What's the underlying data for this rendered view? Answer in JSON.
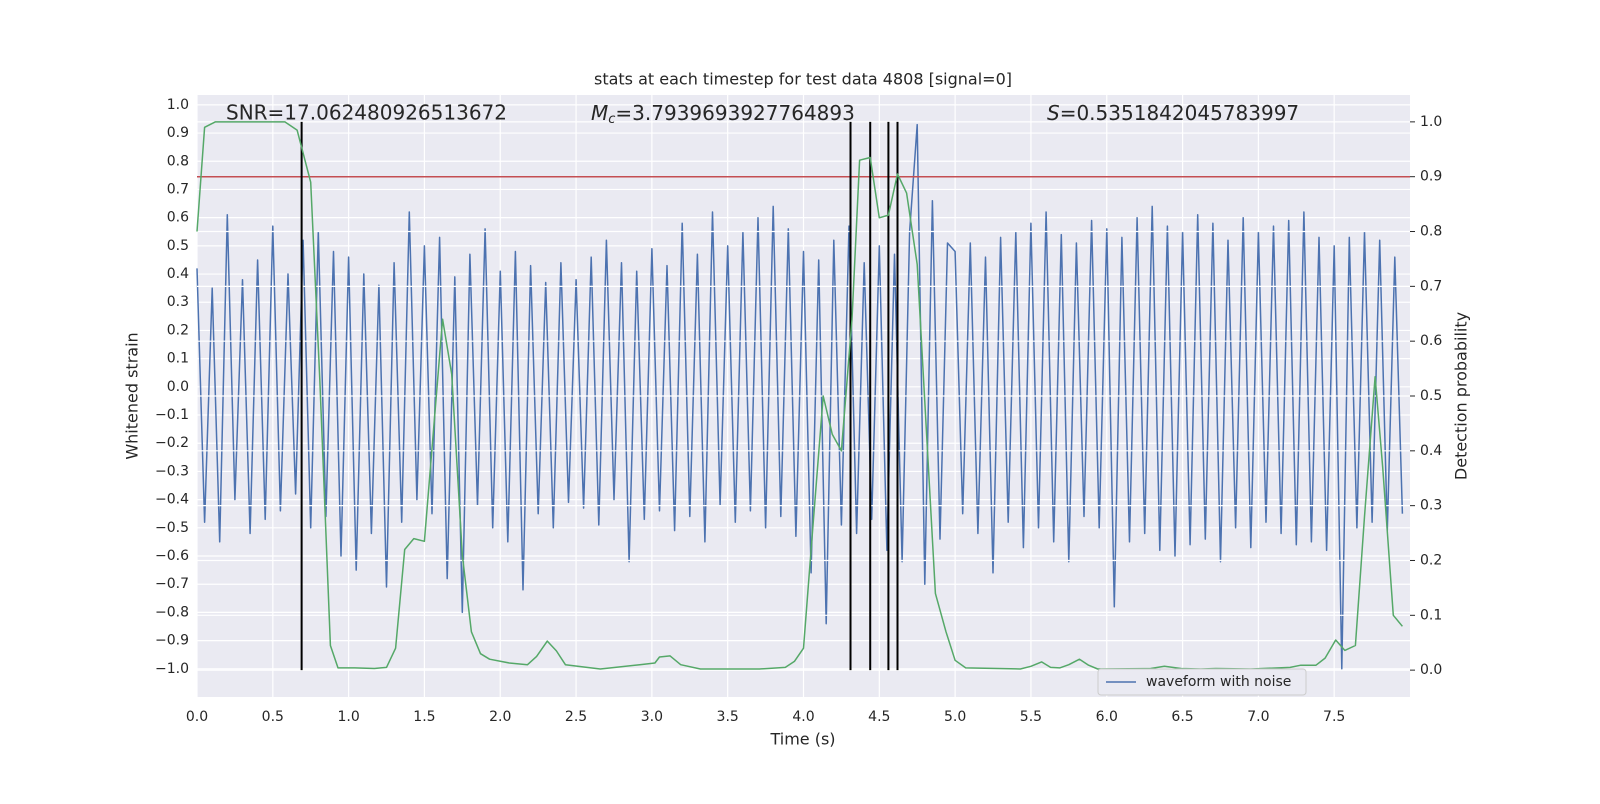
{
  "chart_data": {
    "type": "line",
    "title": "stats at each timestep for test data 4808 [signal=0]",
    "xlabel": "Time (s)",
    "ylabel": "Whitened strain",
    "y2label": "Detection probability",
    "annotations": [
      {
        "text": "SNR=17.062480926513672"
      },
      {
        "symbol": "M",
        "subscript": "c",
        "text": "=3.7939693927764893"
      },
      {
        "symbol": "S",
        "text": "=0.5351842045783997"
      }
    ],
    "xlim": [
      0,
      8.0
    ],
    "ylim": [
      -1.1,
      1.035
    ],
    "y2lim": [
      -0.049,
      1.049
    ],
    "xticks": [
      {
        "value": 0,
        "label": "0.0"
      },
      {
        "value": 0.5,
        "label": "0.5"
      },
      {
        "value": 1,
        "label": "1.0"
      },
      {
        "value": 1.5,
        "label": "1.5"
      },
      {
        "value": 2,
        "label": "2.0"
      },
      {
        "value": 2.5,
        "label": "2.5"
      },
      {
        "value": 3,
        "label": "3.0"
      },
      {
        "value": 3.5,
        "label": "3.5"
      },
      {
        "value": 4,
        "label": "4.0"
      },
      {
        "value": 4.5,
        "label": "4.5"
      },
      {
        "value": 5,
        "label": "5.0"
      },
      {
        "value": 5.5,
        "label": "5.5"
      },
      {
        "value": 6,
        "label": "6.0"
      },
      {
        "value": 6.5,
        "label": "6.5"
      },
      {
        "value": 7,
        "label": "7.0"
      },
      {
        "value": 7.5,
        "label": "7.5"
      }
    ],
    "yticks": [
      {
        "value": -1,
        "label": "−1.0"
      },
      {
        "value": -0.9,
        "label": "−0.9"
      },
      {
        "value": -0.8,
        "label": "−0.8"
      },
      {
        "value": -0.7,
        "label": "−0.7"
      },
      {
        "value": -0.6,
        "label": "−0.6"
      },
      {
        "value": -0.5,
        "label": "−0.5"
      },
      {
        "value": -0.4,
        "label": "−0.4"
      },
      {
        "value": -0.3,
        "label": "−0.3"
      },
      {
        "value": -0.2,
        "label": "−0.2"
      },
      {
        "value": -0.1,
        "label": "−0.1"
      },
      {
        "value": 0,
        "label": "0.0"
      },
      {
        "value": 0.1,
        "label": "0.1"
      },
      {
        "value": 0.2,
        "label": "0.2"
      },
      {
        "value": 0.3,
        "label": "0.3"
      },
      {
        "value": 0.4,
        "label": "0.4"
      },
      {
        "value": 0.5,
        "label": "0.5"
      },
      {
        "value": 0.6,
        "label": "0.6"
      },
      {
        "value": 0.7,
        "label": "0.7"
      },
      {
        "value": 0.8,
        "label": "0.8"
      },
      {
        "value": 0.9,
        "label": "0.9"
      },
      {
        "value": 1,
        "label": "1.0"
      }
    ],
    "y2ticks": [
      {
        "value": 0,
        "label": "0.0"
      },
      {
        "value": 0.1,
        "label": "0.1"
      },
      {
        "value": 0.2,
        "label": "0.2"
      },
      {
        "value": 0.3,
        "label": "0.3"
      },
      {
        "value": 0.4,
        "label": "0.4"
      },
      {
        "value": 0.5,
        "label": "0.5"
      },
      {
        "value": 0.6,
        "label": "0.6"
      },
      {
        "value": 0.7,
        "label": "0.7"
      },
      {
        "value": 0.8,
        "label": "0.8"
      },
      {
        "value": 0.9,
        "label": "0.9"
      },
      {
        "value": 1,
        "label": "1.0"
      }
    ],
    "grid": true,
    "background": "#eaeaf2",
    "legend": "lower right",
    "threshold": {
      "value": 0.9,
      "axis": "y2",
      "color": "#c44e52"
    },
    "vlines": {
      "x": [
        0.69,
        4.31,
        4.44,
        4.56,
        4.62
      ],
      "color": "#000000"
    },
    "series": [
      {
        "name": "waveform with noise",
        "color": "#4c72b0",
        "x": [
          0,
          0.05,
          0.1,
          0.15,
          0.2,
          0.25,
          0.3,
          0.35,
          0.4,
          0.45,
          0.5,
          0.55,
          0.6,
          0.65,
          0.7,
          0.75,
          0.8,
          0.85,
          0.9,
          0.95,
          1,
          1.05,
          1.1,
          1.15,
          1.2,
          1.25,
          1.3,
          1.35,
          1.4,
          1.45,
          1.5,
          1.55,
          1.6,
          1.65,
          1.7,
          1.75,
          1.8,
          1.85,
          1.9,
          1.95,
          2,
          2.05,
          2.1,
          2.15,
          2.2,
          2.25,
          2.3,
          2.35,
          2.4,
          2.45,
          2.5,
          2.55,
          2.6,
          2.65,
          2.7,
          2.75,
          2.8,
          2.85,
          2.9,
          2.95,
          3,
          3.05,
          3.1,
          3.15,
          3.2,
          3.25,
          3.3,
          3.35,
          3.4,
          3.45,
          3.5,
          3.55,
          3.6,
          3.65,
          3.7,
          3.75,
          3.8,
          3.85,
          3.9,
          3.95,
          4,
          4.05,
          4.1,
          4.15,
          4.2,
          4.25,
          4.3,
          4.35,
          4.4,
          4.45,
          4.5,
          4.55,
          4.6,
          4.65,
          4.7,
          4.75,
          4.8,
          4.85,
          4.9,
          4.95,
          5,
          5.05,
          5.1,
          5.15,
          5.2,
          5.25,
          5.3,
          5.35,
          5.4,
          5.45,
          5.5,
          5.55,
          5.6,
          5.65,
          5.7,
          5.75,
          5.8,
          5.85,
          5.9,
          5.95,
          6,
          6.05,
          6.1,
          6.15,
          6.2,
          6.25,
          6.3,
          6.35,
          6.4,
          6.45,
          6.5,
          6.55,
          6.6,
          6.65,
          6.7,
          6.75,
          6.8,
          6.85,
          6.9,
          6.95,
          7,
          7.05,
          7.1,
          7.15,
          7.2,
          7.25,
          7.3,
          7.35,
          7.4,
          7.45,
          7.5,
          7.55,
          7.6,
          7.65,
          7.7,
          7.75,
          7.8,
          7.85,
          7.9,
          7.95
        ],
        "values": [
          0.42,
          -0.48,
          0.35,
          -0.55,
          0.61,
          -0.4,
          0.38,
          -0.52,
          0.45,
          -0.47,
          0.57,
          -0.44,
          0.4,
          -0.38,
          0.52,
          -0.5,
          0.55,
          -0.46,
          0.48,
          -0.6,
          0.46,
          -0.65,
          0.4,
          -0.52,
          0.36,
          -0.71,
          0.44,
          -0.48,
          0.62,
          -0.4,
          0.5,
          -0.45,
          0.53,
          -0.68,
          0.39,
          -0.8,
          0.47,
          -0.42,
          0.56,
          -0.5,
          0.41,
          -0.55,
          0.48,
          -0.72,
          0.43,
          -0.45,
          0.37,
          -0.5,
          0.44,
          -0.41,
          0.38,
          -0.43,
          0.46,
          -0.49,
          0.52,
          -0.4,
          0.44,
          -0.62,
          0.41,
          -0.47,
          0.49,
          -0.44,
          0.43,
          -0.51,
          0.58,
          -0.46,
          0.47,
          -0.55,
          0.62,
          -0.42,
          0.5,
          -0.48,
          0.55,
          -0.44,
          0.6,
          -0.5,
          0.64,
          -0.46,
          0.56,
          -0.53,
          0.48,
          -0.66,
          0.45,
          -0.84,
          0.52,
          -0.49,
          0.57,
          -0.52,
          0.44,
          -0.47,
          0.5,
          -0.58,
          0.47,
          -0.62,
          0.55,
          0.93,
          -0.7,
          0.66,
          -0.54,
          0.51,
          0.48,
          -0.45,
          0.51,
          -0.52,
          0.46,
          -0.66,
          0.53,
          -0.48,
          0.55,
          -0.57,
          0.58,
          -0.5,
          0.62,
          -0.55,
          0.54,
          -0.62,
          0.51,
          -0.46,
          0.59,
          -0.5,
          0.56,
          -0.78,
          0.53,
          -0.55,
          0.6,
          -0.52,
          0.64,
          -0.58,
          0.57,
          -0.6,
          0.55,
          -0.56,
          0.61,
          -0.54,
          0.58,
          -0.62,
          0.52,
          -0.5,
          0.6,
          -0.57,
          0.55,
          -0.48,
          0.57,
          -0.52,
          0.59,
          -0.56,
          0.62,
          -0.55,
          0.53,
          -0.58,
          0.5,
          -1.0,
          0.53,
          -0.5,
          0.55,
          -0.48,
          0.52,
          -0.51,
          0.46,
          -0.45
        ]
      },
      {
        "color": "#55a868",
        "axis": "y2",
        "x": [
          0,
          0.05,
          0.12,
          0.58,
          0.66,
          0.75,
          0.81,
          0.88,
          0.93,
          1.04,
          1.17,
          1.25,
          1.31,
          1.37,
          1.43,
          1.5,
          1.62,
          1.68,
          1.75,
          1.81,
          1.87,
          1.93,
          2.06,
          2.18,
          2.24,
          2.31,
          2.37,
          2.43,
          2.66,
          2.92,
          3.02,
          3.05,
          3.12,
          3.19,
          3.32,
          3.71,
          3.88,
          3.94,
          4.0,
          4.06,
          4.13,
          4.19,
          4.25,
          4.32,
          4.37,
          4.44,
          4.5,
          4.56,
          4.62,
          4.68,
          4.75,
          4.81,
          4.87,
          4.94,
          5.0,
          5.07,
          5.43,
          5.5,
          5.57,
          5.63,
          5.69,
          5.75,
          5.82,
          5.88,
          5.94,
          6.29,
          6.38,
          6.49,
          6.62,
          6.72,
          6.95,
          7.21,
          7.28,
          7.38,
          7.44,
          7.51,
          7.57,
          7.64,
          7.7,
          7.77,
          7.82,
          7.89,
          7.95
        ],
        "values": [
          0.8,
          0.99,
          1.0,
          1.0,
          0.985,
          0.89,
          0.53,
          0.045,
          0.004,
          0.004,
          0.003,
          0.005,
          0.04,
          0.22,
          0.24,
          0.235,
          0.64,
          0.54,
          0.21,
          0.07,
          0.03,
          0.02,
          0.013,
          0.01,
          0.025,
          0.053,
          0.035,
          0.01,
          0.002,
          0.01,
          0.013,
          0.024,
          0.026,
          0.01,
          0.002,
          0.002,
          0.005,
          0.016,
          0.04,
          0.255,
          0.5,
          0.43,
          0.4,
          0.64,
          0.93,
          0.935,
          0.825,
          0.83,
          0.905,
          0.87,
          0.74,
          0.44,
          0.14,
          0.07,
          0.018,
          0.004,
          0.002,
          0.007,
          0.015,
          0.005,
          0.004,
          0.01,
          0.02,
          0.009,
          0.002,
          0.003,
          0.007,
          0.003,
          0.002,
          0.003,
          0.002,
          0.005,
          0.009,
          0.009,
          0.022,
          0.055,
          0.036,
          0.045,
          0.28,
          0.535,
          0.37,
          0.1,
          0.08
        ]
      }
    ]
  }
}
